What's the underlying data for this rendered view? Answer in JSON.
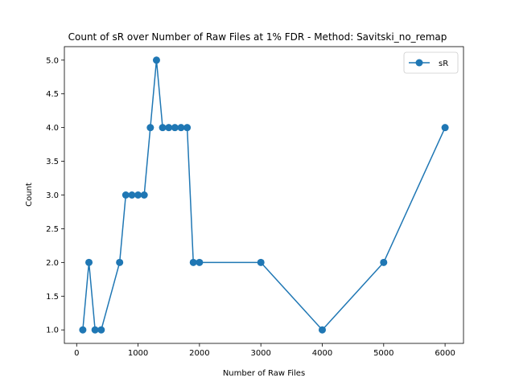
{
  "chart_data": {
    "type": "line",
    "title": "Count of sR over Number of Raw Files at 1% FDR - Method: Savitski_no_remap",
    "xlabel": "Number of Raw Files",
    "ylabel": "Count",
    "xlim": [
      -200,
      6300
    ],
    "ylim": [
      0.8,
      5.2
    ],
    "xticks": [
      0,
      1000,
      2000,
      3000,
      4000,
      5000,
      6000
    ],
    "yticks": [
      1.0,
      1.5,
      2.0,
      2.5,
      3.0,
      3.5,
      4.0,
      4.5,
      5.0
    ],
    "xtick_labels": [
      "0",
      "1000",
      "2000",
      "3000",
      "4000",
      "5000",
      "6000"
    ],
    "ytick_labels": [
      "1.0",
      "1.5",
      "2.0",
      "2.5",
      "3.0",
      "3.5",
      "4.0",
      "4.5",
      "5.0"
    ],
    "grid": false,
    "legend_position": "top-right",
    "series": [
      {
        "name": "sR",
        "color": "#1f77b4",
        "marker": "circle",
        "x": [
          100,
          200,
          300,
          400,
          700,
          800,
          900,
          1000,
          1100,
          1200,
          1300,
          1400,
          1500,
          1600,
          1700,
          1800,
          1900,
          2000,
          3000,
          4000,
          5000,
          6000
        ],
        "y": [
          1,
          2,
          1,
          1,
          2,
          3,
          3,
          3,
          3,
          4,
          5,
          4,
          4,
          4,
          4,
          4,
          2,
          2,
          2,
          1,
          2,
          4
        ]
      }
    ]
  }
}
